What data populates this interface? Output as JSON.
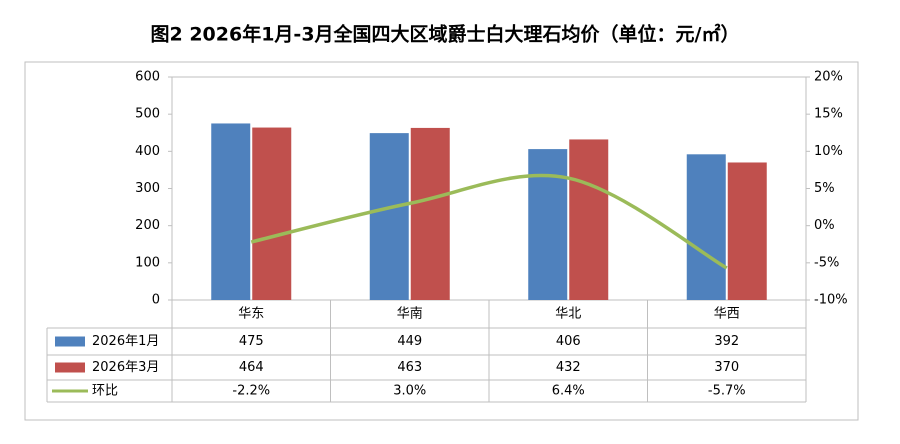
{
  "chart_data": {
    "type": "bar-line",
    "title": "图2 2026年1月-3月全国四大区域爵士白大理石均价（单位：元/㎡）",
    "categories": [
      "华东",
      "华南",
      "华北",
      "华西"
    ],
    "series": [
      {
        "name": "2026年1月",
        "type": "bar",
        "color": "#4f81bd",
        "values": [
          475,
          449,
          406,
          392
        ]
      },
      {
        "name": "2026年3月",
        "type": "bar",
        "color": "#c0504d",
        "values": [
          464,
          463,
          432,
          370
        ]
      },
      {
        "name": "环比",
        "type": "line",
        "axis": "y2",
        "color": "#9bbb59",
        "values": [
          -2.2,
          3.0,
          6.4,
          -5.7
        ],
        "value_labels": [
          "-2.2%",
          "3.0%",
          "6.4%",
          "-5.7%"
        ]
      }
    ],
    "ylim": [
      0,
      600
    ],
    "yticks": [
      0,
      100,
      200,
      300,
      400,
      500,
      600
    ],
    "y2lim": [
      -10,
      20
    ],
    "y2ticks": [
      {
        "value": -10,
        "label": "-10%"
      },
      {
        "value": -5,
        "label": "-5%"
      },
      {
        "value": 0,
        "label": "0%"
      },
      {
        "value": 5,
        "label": "5%"
      },
      {
        "value": 10,
        "label": "10%"
      },
      {
        "value": 15,
        "label": "15%"
      },
      {
        "value": 20,
        "label": "20%"
      }
    ],
    "data_table": true
  }
}
